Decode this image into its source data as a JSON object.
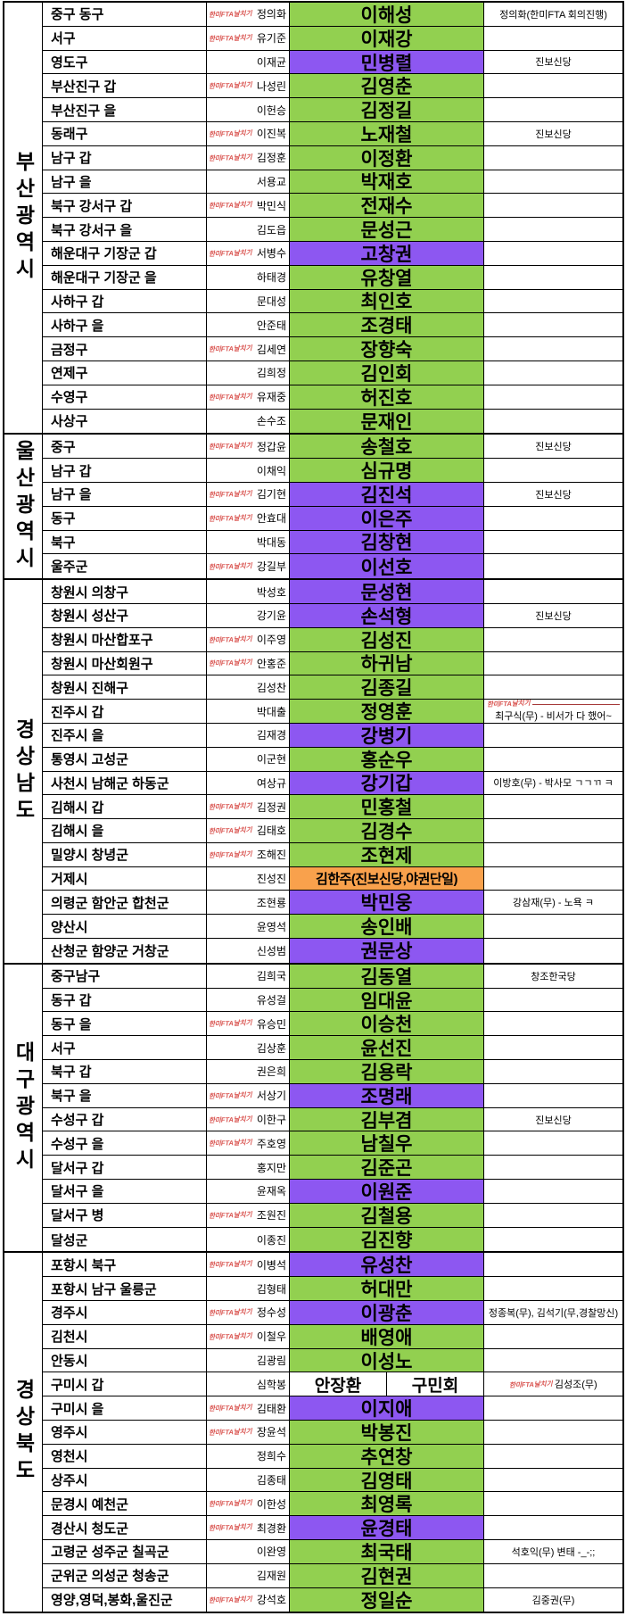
{
  "stamp_label": "한미FTA날치기",
  "colors": {
    "green": "#92D050",
    "purple": "#8D57F1",
    "orange": "#F9A14C",
    "white": "#FFFFFF",
    "stamp_red": "#D9534F"
  },
  "sections": [
    {
      "region": "부산광역시",
      "rows": [
        {
          "district": "중구 동구",
          "fta": true,
          "incumbent": "정의화",
          "challenger": "이해성",
          "color": "green",
          "note": "정의화(한미FTA 회의진행)"
        },
        {
          "district": "서구",
          "fta": true,
          "incumbent": "유기준",
          "challenger": "이재강",
          "color": "green"
        },
        {
          "district": "영도구",
          "fta": false,
          "incumbent": "이재균",
          "challenger": "민병렬",
          "color": "purple",
          "note": "진보신당"
        },
        {
          "district": "부산진구 갑",
          "fta": true,
          "incumbent": "나성린",
          "challenger": "김영춘",
          "color": "green"
        },
        {
          "district": "부산진구 을",
          "fta": false,
          "incumbent": "이헌승",
          "challenger": "김정길",
          "color": "green"
        },
        {
          "district": "동래구",
          "fta": true,
          "incumbent": "이진복",
          "challenger": "노재철",
          "color": "green",
          "note": "진보신당"
        },
        {
          "district": "남구 갑",
          "fta": true,
          "incumbent": "김정훈",
          "challenger": "이정환",
          "color": "green"
        },
        {
          "district": "남구 을",
          "fta": false,
          "incumbent": "서용교",
          "challenger": "박재호",
          "color": "green"
        },
        {
          "district": "북구 강서구 갑",
          "fta": true,
          "incumbent": "박민식",
          "challenger": "전재수",
          "color": "green"
        },
        {
          "district": "북구 강서구 을",
          "fta": false,
          "incumbent": "김도읍",
          "challenger": "문성근",
          "color": "green"
        },
        {
          "district": "해운대구 기장군 갑",
          "fta": true,
          "incumbent": "서병수",
          "challenger": "고창권",
          "color": "purple"
        },
        {
          "district": "해운대구 기장군 을",
          "fta": false,
          "incumbent": "하태경",
          "challenger": "유창열",
          "color": "green"
        },
        {
          "district": "사하구 갑",
          "fta": false,
          "incumbent": "문대성",
          "challenger": "최인호",
          "color": "green"
        },
        {
          "district": "사하구 을",
          "fta": false,
          "incumbent": "안준태",
          "challenger": "조경태",
          "color": "green"
        },
        {
          "district": "금정구",
          "fta": true,
          "incumbent": "김세연",
          "challenger": "장향숙",
          "color": "green"
        },
        {
          "district": "연제구",
          "fta": false,
          "incumbent": "김희정",
          "challenger": "김인회",
          "color": "green"
        },
        {
          "district": "수영구",
          "fta": true,
          "incumbent": "유재중",
          "challenger": "허진호",
          "color": "green"
        },
        {
          "district": "사상구",
          "fta": false,
          "incumbent": "손수조",
          "challenger": "문재인",
          "color": "green"
        }
      ]
    },
    {
      "region": "울산광역시",
      "rows": [
        {
          "district": "중구",
          "fta": true,
          "incumbent": "정갑윤",
          "challenger": "송철호",
          "color": "green",
          "note": "진보신당"
        },
        {
          "district": "남구 갑",
          "fta": false,
          "incumbent": "이채익",
          "challenger": "심규명",
          "color": "green"
        },
        {
          "district": "남구 을",
          "fta": true,
          "incumbent": "김기현",
          "challenger": "김진석",
          "color": "purple",
          "note": "진보신당"
        },
        {
          "district": "동구",
          "fta": true,
          "incumbent": "안효대",
          "challenger": "이은주",
          "color": "purple"
        },
        {
          "district": "북구",
          "fta": false,
          "incumbent": "박대동",
          "challenger": "김창현",
          "color": "purple"
        },
        {
          "district": "울주군",
          "fta": true,
          "incumbent": "강길부",
          "challenger": "이선호",
          "color": "purple"
        }
      ]
    },
    {
      "region": "경상남도",
      "rows": [
        {
          "district": "창원시 의창구",
          "fta": false,
          "incumbent": "박성호",
          "challenger": "문성현",
          "color": "purple"
        },
        {
          "district": "창원시 성산구",
          "fta": false,
          "incumbent": "강기윤",
          "challenger": "손석형",
          "color": "purple",
          "note": "진보신당"
        },
        {
          "district": "창원시 마산합포구",
          "fta": true,
          "incumbent": "이주영",
          "challenger": "김성진",
          "color": "green"
        },
        {
          "district": "창원시 마산회원구",
          "fta": true,
          "incumbent": "안홍준",
          "challenger": "하귀남",
          "color": "green"
        },
        {
          "district": "창원시 진해구",
          "fta": false,
          "incumbent": "김성찬",
          "challenger": "김종길",
          "color": "green"
        },
        {
          "district": "진주시 갑",
          "fta": false,
          "incumbent": "박대출",
          "challenger": "정영훈",
          "color": "green",
          "note": "최구식(무) - 비서가 다 했어~",
          "note_stamp": "above"
        },
        {
          "district": "진주시 을",
          "fta": false,
          "incumbent": "김재경",
          "challenger": "강병기",
          "color": "purple"
        },
        {
          "district": "통영시 고성군",
          "fta": false,
          "incumbent": "이군현",
          "challenger": "홍순우",
          "color": "green"
        },
        {
          "district": "사천시 남해군 하동군",
          "fta": false,
          "incumbent": "여상규",
          "challenger": "강기갑",
          "color": "purple",
          "note": "이방호(무) - 박사모 ㄱㄱㄲ ㅋ"
        },
        {
          "district": "김해시 갑",
          "fta": true,
          "incumbent": "김정권",
          "challenger": "민홍철",
          "color": "green"
        },
        {
          "district": "김해시 을",
          "fta": true,
          "incumbent": "김태호",
          "challenger": "김경수",
          "color": "green"
        },
        {
          "district": "밀양시 창녕군",
          "fta": true,
          "incumbent": "조해진",
          "challenger": "조현제",
          "color": "green"
        },
        {
          "district": "거제시",
          "fta": false,
          "incumbent": "진성진",
          "challenger": "김한주(진보신당,야권단일)",
          "color": "orange"
        },
        {
          "district": "의령군 함안군 합천군",
          "fta": false,
          "incumbent": "조현룡",
          "challenger": "박민웅",
          "color": "purple",
          "note": "강삼재(무) - 노욕 ㅋ"
        },
        {
          "district": "양산시",
          "fta": false,
          "incumbent": "윤영석",
          "challenger": "송인배",
          "color": "green"
        },
        {
          "district": "산청군 함양군 거창군",
          "fta": false,
          "incumbent": "신성범",
          "challenger": "권문상",
          "color": "purple"
        }
      ]
    },
    {
      "region": "대구광역시",
      "rows": [
        {
          "district": "중구남구",
          "fta": false,
          "incumbent": "김희국",
          "challenger": "김동열",
          "color": "green",
          "note": "창조한국당"
        },
        {
          "district": "동구 갑",
          "fta": false,
          "incumbent": "유성걸",
          "challenger": "임대윤",
          "color": "green"
        },
        {
          "district": "동구 을",
          "fta": true,
          "incumbent": "유승민",
          "challenger": "이승천",
          "color": "green"
        },
        {
          "district": "서구",
          "fta": false,
          "incumbent": "김상훈",
          "challenger": "윤선진",
          "color": "green"
        },
        {
          "district": "북구 갑",
          "fta": false,
          "incumbent": "권은희",
          "challenger": "김용락",
          "color": "green"
        },
        {
          "district": "북구 을",
          "fta": true,
          "incumbent": "서상기",
          "challenger": "조명래",
          "color": "purple"
        },
        {
          "district": "수성구 갑",
          "fta": true,
          "incumbent": "이한구",
          "challenger": "김부겸",
          "color": "green",
          "note": "진보신당"
        },
        {
          "district": "수성구 을",
          "fta": true,
          "incumbent": "주호영",
          "challenger": "남칠우",
          "color": "green"
        },
        {
          "district": "달서구 갑",
          "fta": false,
          "incumbent": "홍지만",
          "challenger": "김준곤",
          "color": "green"
        },
        {
          "district": "달서구 을",
          "fta": false,
          "incumbent": "윤재옥",
          "challenger": "이원준",
          "color": "purple"
        },
        {
          "district": "달서구 병",
          "fta": true,
          "incumbent": "조원진",
          "challenger": "김철용",
          "color": "green"
        },
        {
          "district": "달성군",
          "fta": false,
          "incumbent": "이종진",
          "challenger": "김진향",
          "color": "green"
        }
      ]
    },
    {
      "region": "경상북도",
      "rows": [
        {
          "district": "포항시 북구",
          "fta": true,
          "incumbent": "이병석",
          "challenger": "유성찬",
          "color": "purple"
        },
        {
          "district": "포항시 남구 울릉군",
          "fta": false,
          "incumbent": "김형태",
          "challenger": "허대만",
          "color": "green"
        },
        {
          "district": "경주시",
          "fta": true,
          "incumbent": "정수성",
          "challenger": "이광춘",
          "color": "purple",
          "note": "정종복(무), 김석기(무,경찰망신)"
        },
        {
          "district": "김천시",
          "fta": true,
          "incumbent": "이철우",
          "challenger": "배영애",
          "color": "green"
        },
        {
          "district": "안동시",
          "fta": false,
          "incumbent": "김광림",
          "challenger": "이성노",
          "color": "green"
        },
        {
          "district": "구미시 갑",
          "fta": false,
          "incumbent": "심학봉",
          "pair": [
            "안장환",
            "구민회"
          ],
          "color": "white",
          "note": "김성조(무)",
          "note_stamp": "inline"
        },
        {
          "district": "구미시 을",
          "fta": true,
          "incumbent": "김태환",
          "challenger": "이지애",
          "color": "purple"
        },
        {
          "district": "영주시",
          "fta": true,
          "incumbent": "장윤석",
          "challenger": "박봉진",
          "color": "green"
        },
        {
          "district": "영천시",
          "fta": false,
          "incumbent": "정희수",
          "challenger": "추연창",
          "color": "green"
        },
        {
          "district": "상주시",
          "fta": false,
          "incumbent": "김종태",
          "challenger": "김영태",
          "color": "green"
        },
        {
          "district": "문경시 예천군",
          "fta": true,
          "incumbent": "이한성",
          "challenger": "최영록",
          "color": "green"
        },
        {
          "district": "경산시 청도군",
          "fta": true,
          "incumbent": "최경환",
          "challenger": "윤경태",
          "color": "purple"
        },
        {
          "district": "고령군 성주군 칠곡군",
          "fta": false,
          "incumbent": "이완영",
          "challenger": "최국태",
          "color": "green",
          "note": "석호익(무) 변태 -_-;;"
        },
        {
          "district": "군위군 의성군 청송군",
          "fta": false,
          "incumbent": "김재원",
          "challenger": "김현권",
          "color": "green"
        },
        {
          "district": "영양,영덕,봉화,울진군",
          "fta": true,
          "incumbent": "강석호",
          "challenger": "정일순",
          "color": "green",
          "note": "김중권(무)"
        }
      ]
    }
  ]
}
